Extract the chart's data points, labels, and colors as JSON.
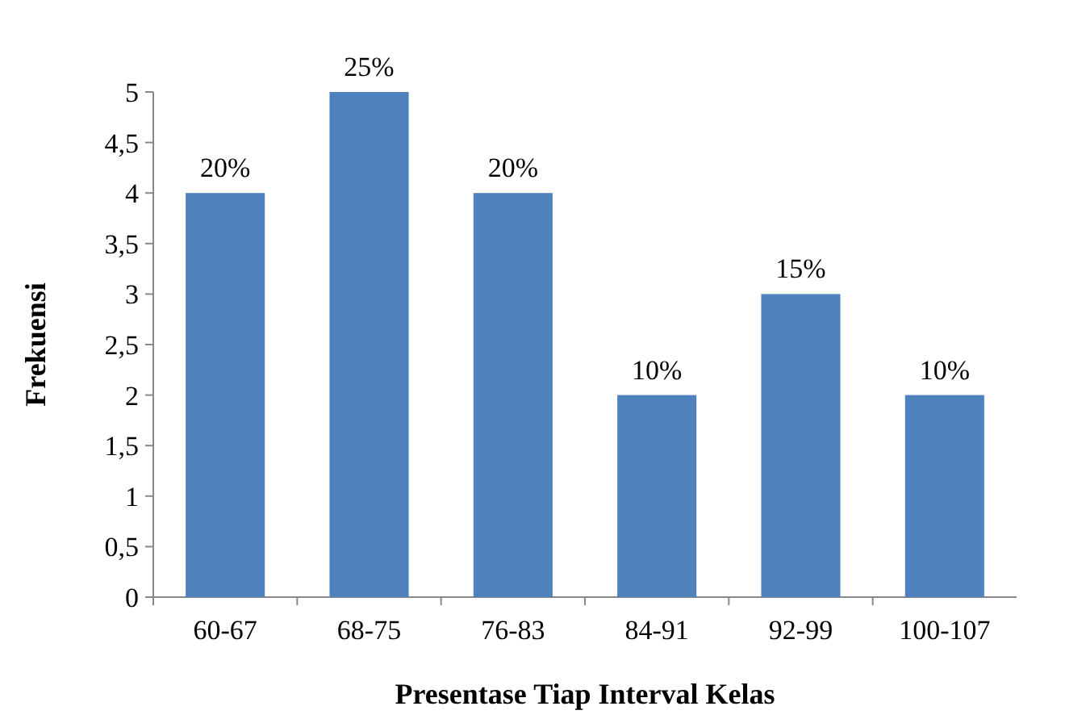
{
  "chart_data": {
    "type": "bar",
    "xlabel": "Presentase Tiap Interval Kelas",
    "ylabel": "Frekuensi",
    "categories": [
      "60-67",
      "68-75",
      "76-83",
      "84-91",
      "92-99",
      "100-107"
    ],
    "values": [
      4,
      5,
      4,
      2,
      3,
      2
    ],
    "color": "#4f81bd",
    "annotations": [
      {
        "text": "20%",
        "x": "60-67",
        "y": 4
      },
      {
        "text": "25%",
        "x": "68-75",
        "y": 5
      },
      {
        "text": "20%",
        "x": "76-83",
        "y": 4
      },
      {
        "text": "10%",
        "x": "84-91",
        "y": 2
      },
      {
        "text": "15%",
        "x": "92-99",
        "y": 3
      },
      {
        "text": "10%",
        "x": "100-107",
        "y": 2
      }
    ],
    "ylim": [
      0,
      5
    ],
    "yticks": [
      0,
      {
        "value": 0.5,
        "label": "0,5"
      },
      1,
      {
        "value": 1.5,
        "label": "1,5"
      },
      2,
      {
        "value": 2.5,
        "label": "2,5"
      },
      3,
      {
        "value": 3.5,
        "label": "3,5"
      },
      4,
      {
        "value": 4.5,
        "label": "4,5"
      },
      5
    ],
    "grid": false
  }
}
